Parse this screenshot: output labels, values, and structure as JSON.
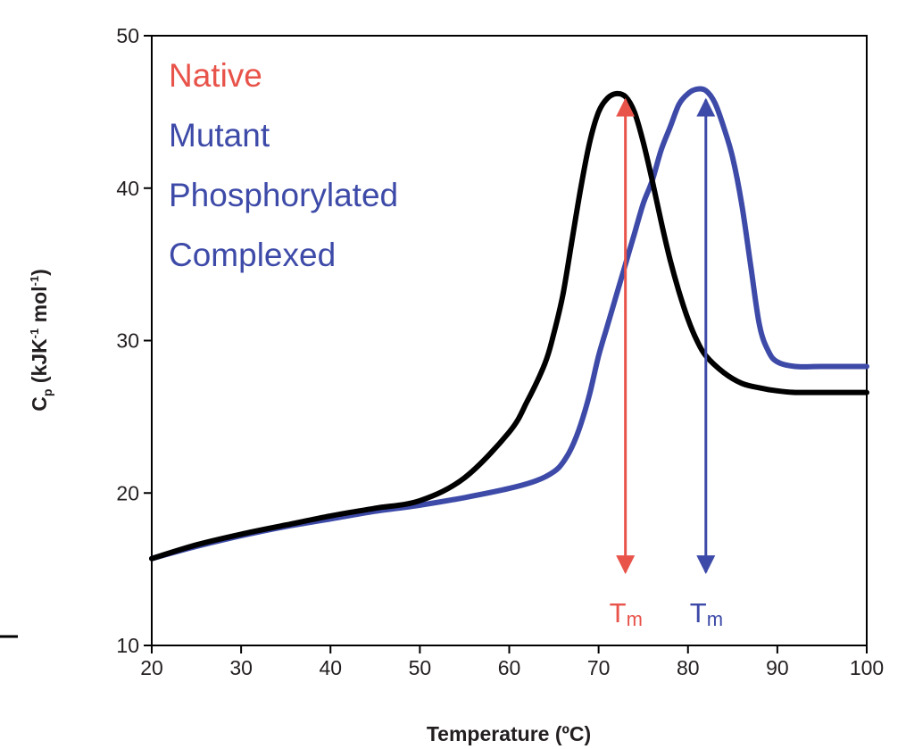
{
  "chart_data": {
    "type": "line",
    "title": "",
    "xlabel": "Temperature (ºC)",
    "ylabel": {
      "main": "C",
      "sub": "p",
      "rest_a": " (kJK",
      "sup1": "-1",
      "rest_b": " mol",
      "sup2": "-1",
      "rest_c": ")"
    },
    "xlim": [
      20,
      100
    ],
    "ylim": [
      10,
      50
    ],
    "xticks": [
      20,
      30,
      40,
      50,
      60,
      70,
      80,
      90,
      100
    ],
    "yticks": [
      10,
      20,
      30,
      40,
      50
    ],
    "grid": false,
    "legend_position": "top-left",
    "legend": [
      {
        "label": "Native",
        "color": "#e8534a"
      },
      {
        "label": "Mutant",
        "color": "#3d4aa8"
      },
      {
        "label": "Phosphorylated",
        "color": "#3d4aa8"
      },
      {
        "label": "Complexed",
        "color": "#3d4aa8"
      }
    ],
    "series": [
      {
        "color": "#000000",
        "x": [
          20,
          25,
          30,
          35,
          40,
          45,
          50,
          55,
          60,
          62,
          64,
          65,
          66,
          67,
          68,
          69,
          70,
          71,
          72,
          73,
          74,
          75,
          76,
          77,
          78,
          79,
          80,
          81,
          82,
          84,
          86,
          88,
          90,
          92,
          95,
          100
        ],
        "y": [
          15.7,
          16.6,
          17.3,
          17.9,
          18.5,
          19.0,
          19.5,
          21.0,
          24.0,
          26.0,
          28.5,
          30.5,
          33.0,
          36.5,
          40.0,
          43.0,
          45.0,
          45.9,
          46.2,
          46.0,
          45.0,
          43.0,
          40.5,
          37.8,
          35.3,
          33.2,
          31.4,
          30.0,
          29.0,
          27.9,
          27.2,
          26.9,
          26.7,
          26.6,
          26.6,
          26.6
        ]
      },
      {
        "color": "#3d4aa8",
        "x": [
          20,
          25,
          30,
          35,
          40,
          45,
          50,
          55,
          60,
          63,
          65,
          66,
          67,
          68,
          69,
          70,
          71,
          72,
          73,
          74,
          75,
          76,
          77,
          78,
          79,
          80,
          81,
          82,
          83,
          84,
          85,
          86,
          87,
          88,
          89,
          90,
          92,
          95,
          100
        ],
        "y": [
          15.7,
          16.5,
          17.2,
          17.8,
          18.3,
          18.8,
          19.2,
          19.7,
          20.3,
          20.8,
          21.4,
          22.0,
          23.0,
          24.5,
          26.5,
          29.0,
          31.0,
          33.0,
          35.0,
          37.0,
          39.0,
          40.5,
          42.5,
          44.0,
          45.5,
          46.2,
          46.5,
          46.4,
          45.6,
          44.0,
          42.0,
          39.0,
          35.0,
          31.0,
          29.3,
          28.6,
          28.3,
          28.3,
          28.3
        ]
      }
    ],
    "annotations": [
      {
        "type": "double-arrow",
        "x": 73,
        "y_from": 14.8,
        "y_to": 45.8,
        "color": "#e8534a",
        "label": "T",
        "label_sub": "m"
      },
      {
        "type": "double-arrow",
        "x": 82,
        "y_from": 14.8,
        "y_to": 45.8,
        "color": "#3d4aa8",
        "label": "T",
        "label_sub": "m"
      }
    ]
  }
}
